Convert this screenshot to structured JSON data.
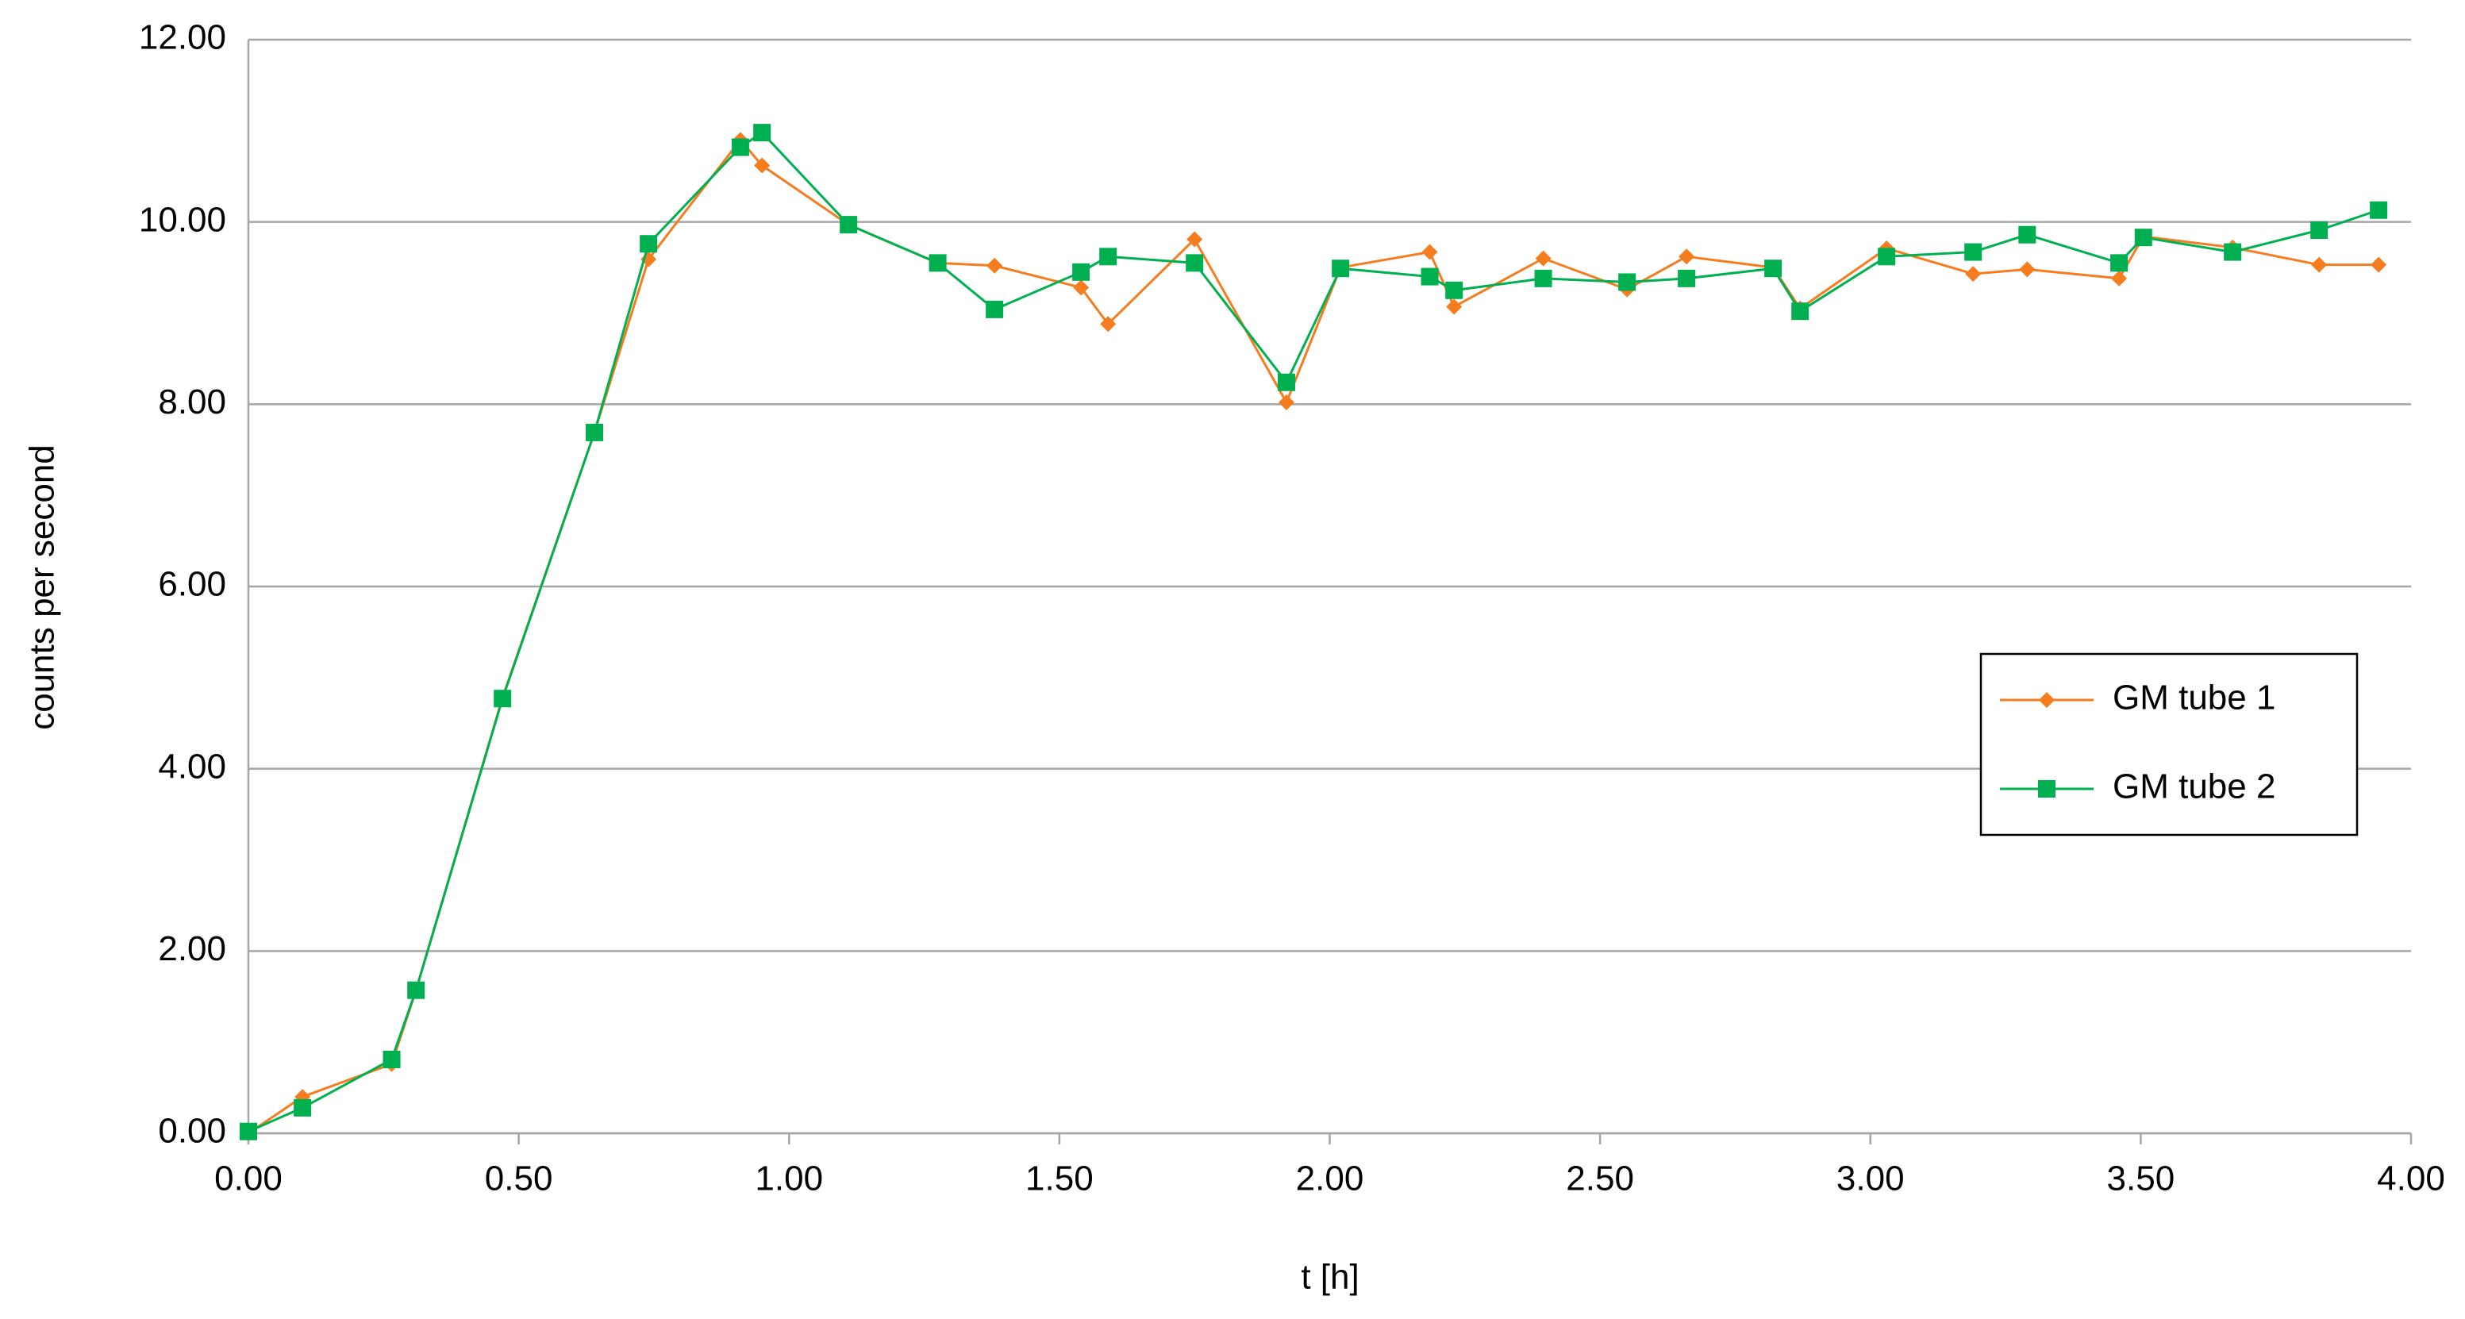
{
  "chart_data": {
    "type": "line",
    "x_label": "t [h]",
    "y_label": "counts per second",
    "x": [
      0,
      0.1,
      0.265,
      0.31,
      0.47,
      0.64,
      0.74,
      0.91,
      0.95,
      1.11,
      1.275,
      1.38,
      1.54,
      1.59,
      1.75,
      1.92,
      2.02,
      2.185,
      2.23,
      2.395,
      2.55,
      2.66,
      2.82,
      2.87,
      3.03,
      3.19,
      3.29,
      3.46,
      3.505,
      3.67,
      3.83,
      3.94
    ],
    "series": [
      {
        "name": "GM tube 1",
        "color": "#f57c1f",
        "marker": "diamond",
        "values": [
          0,
          0.4,
          0.76,
          1.57,
          4.78,
          7.69,
          9.59,
          10.9,
          10.62,
          9.97,
          9.55,
          9.52,
          9.28,
          8.88,
          9.81,
          8.02,
          9.5,
          9.67,
          9.07,
          9.6,
          9.26,
          9.62,
          9.5,
          9.05,
          9.71,
          9.43,
          9.48,
          9.38,
          9.84,
          9.72,
          9.53,
          9.53
        ]
      },
      {
        "name": "GM tube 2",
        "color": "#00b050",
        "marker": "square",
        "values": [
          0.02,
          0.28,
          0.81,
          1.57,
          4.77,
          7.69,
          9.76,
          10.82,
          10.98,
          9.97,
          9.55,
          9.04,
          9.45,
          9.62,
          9.55,
          8.24,
          9.49,
          9.4,
          9.25,
          9.38,
          9.34,
          9.38,
          9.49,
          9.02,
          9.62,
          9.67,
          9.86,
          9.55,
          9.83,
          9.67,
          9.91,
          10.13
        ]
      }
    ],
    "xlim": [
      0,
      4
    ],
    "ylim": [
      0,
      12
    ],
    "xticks": [
      {
        "value": 0,
        "label": "0.00"
      },
      {
        "value": 0.5,
        "label": "0.50"
      },
      {
        "value": 1,
        "label": "1.00"
      },
      {
        "value": 1.5,
        "label": "1.50"
      },
      {
        "value": 2,
        "label": "2.00"
      },
      {
        "value": 2.5,
        "label": "2.50"
      },
      {
        "value": 3,
        "label": "3.00"
      },
      {
        "value": 3.5,
        "label": "3.50"
      },
      {
        "value": 4,
        "label": "4.00"
      }
    ],
    "yticks": [
      {
        "value": 0,
        "label": "0.00"
      },
      {
        "value": 2,
        "label": "2.00"
      },
      {
        "value": 4,
        "label": "4.00"
      },
      {
        "value": 6,
        "label": "6.00"
      },
      {
        "value": 8,
        "label": "8.00"
      },
      {
        "value": 10,
        "label": "10.00"
      },
      {
        "value": 12,
        "label": "12.00"
      }
    ],
    "grid": true,
    "legend": "right"
  }
}
